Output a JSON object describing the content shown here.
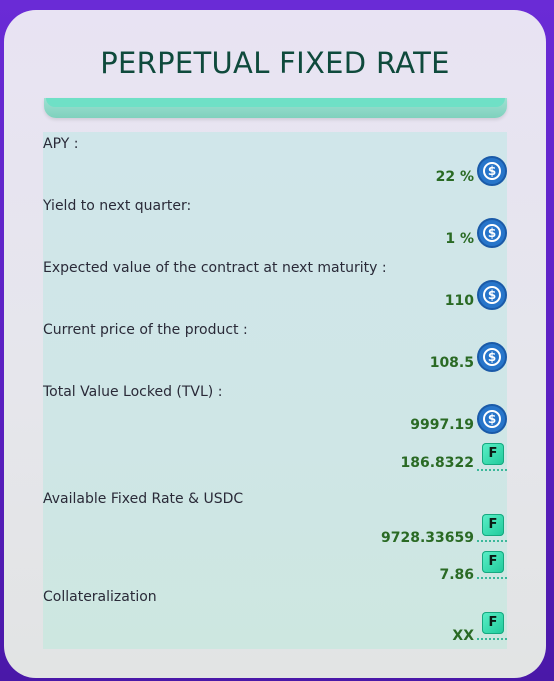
{
  "title": "PERPETUAL FIXED RATE",
  "rows": [
    {
      "label": "APY :",
      "value": "22 %",
      "icon": "usdc-icon"
    },
    {
      "label": "Yield to next quarter:",
      "value": "1 %",
      "icon": "usdc-icon"
    },
    {
      "label": "Expected value of the contract at next maturity :",
      "value": "110",
      "icon": "usdc-icon"
    },
    {
      "label": "Current price of the product :",
      "value": "108.5",
      "icon": "usdc-icon"
    }
  ],
  "tvl": {
    "label": "Total Value Locked (TVL) :",
    "usdc_value": "9997.19",
    "f_value": "186.8322"
  },
  "available": {
    "label": "Available Fixed Rate & USDC",
    "f_value_1": "9728.33659",
    "f_value_2": "7.86"
  },
  "collateralization": {
    "label": "Collateralization",
    "value": "XX"
  },
  "icons": {
    "usdc_symbol": "$",
    "f_symbol": "F"
  },
  "colors": {
    "title": "#0f4a3c",
    "value": "#2a6a24",
    "usdc": "#2775ca",
    "f_token": "#1fc99a",
    "accent_bar": "#6fe0c6"
  }
}
